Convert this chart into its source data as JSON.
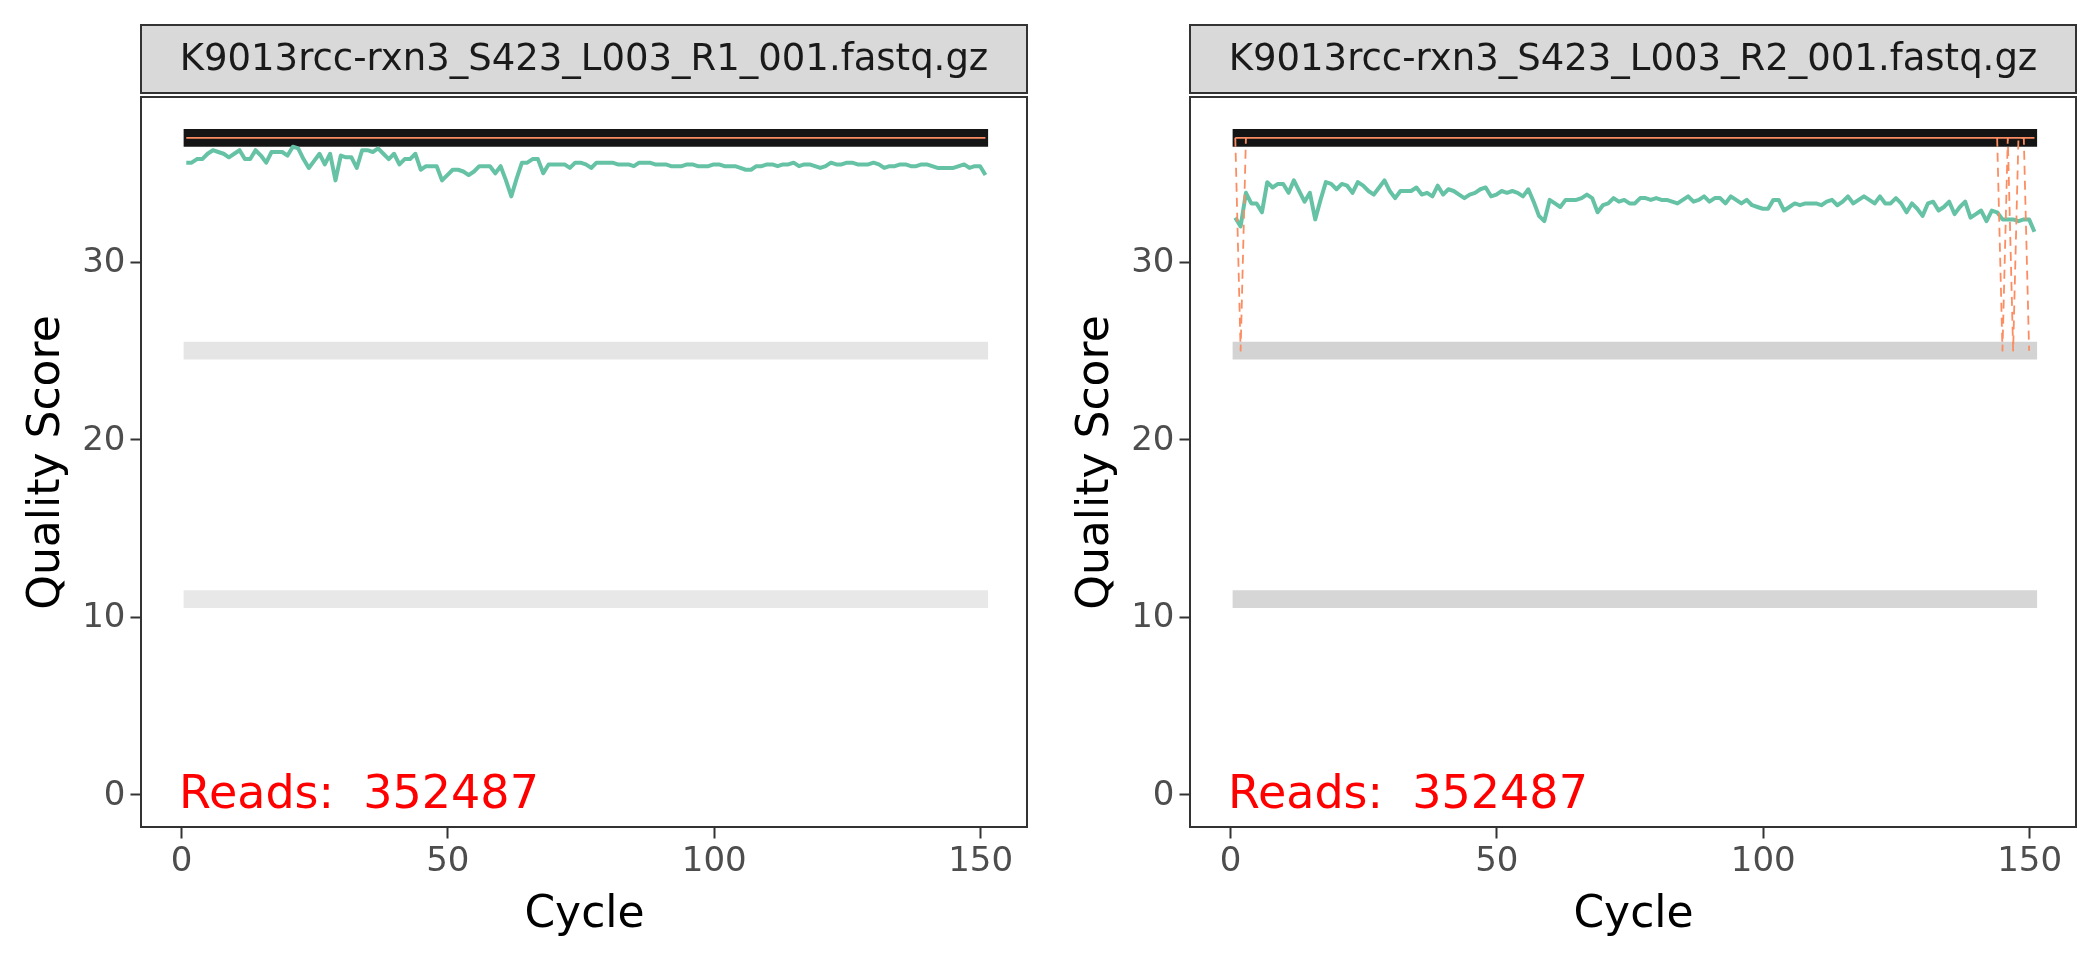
{
  "chart_data": [
    {
      "type": "line",
      "title": "K9013rcc-rxn3_S423_L003_R1_001.fastq.gz",
      "xlabel": "Cycle",
      "ylabel": "Quality Score",
      "xlim": [
        -7.5,
        158.8
      ],
      "xticks": [
        0,
        50,
        100,
        150
      ],
      "ylim": [
        -1.85,
        39.3
      ],
      "yticks": [
        0,
        10,
        20,
        30
      ],
      "annotations": [
        "Reads:  352487"
      ],
      "bands": [
        {
          "axis": "y",
          "from": 36.5,
          "to": 37.5,
          "color": "#151515"
        },
        {
          "axis": "y",
          "from": 24.5,
          "to": 25.5,
          "color": "#e5e5e5"
        },
        {
          "axis": "y",
          "from": 10.5,
          "to": 11.5,
          "color": "#e8e8e8"
        }
      ],
      "x": [
        1,
        2,
        3,
        4,
        5,
        6,
        7,
        8,
        9,
        10,
        11,
        12,
        13,
        14,
        15,
        16,
        17,
        18,
        19,
        20,
        21,
        22,
        23,
        24,
        25,
        26,
        27,
        28,
        29,
        30,
        31,
        32,
        33,
        34,
        35,
        36,
        37,
        38,
        39,
        40,
        41,
        42,
        43,
        44,
        45,
        46,
        47,
        48,
        49,
        50,
        51,
        52,
        53,
        54,
        55,
        56,
        57,
        58,
        59,
        60,
        61,
        62,
        63,
        64,
        65,
        66,
        67,
        68,
        69,
        70,
        71,
        72,
        73,
        74,
        75,
        76,
        77,
        78,
        79,
        80,
        81,
        82,
        83,
        84,
        85,
        86,
        87,
        88,
        89,
        90,
        91,
        92,
        93,
        94,
        95,
        96,
        97,
        98,
        99,
        100,
        101,
        102,
        103,
        104,
        105,
        106,
        107,
        108,
        109,
        110,
        111,
        112,
        113,
        114,
        115,
        116,
        117,
        118,
        119,
        120,
        121,
        122,
        123,
        124,
        125,
        126,
        127,
        128,
        129,
        130,
        131,
        132,
        133,
        134,
        135,
        136,
        137,
        138,
        139,
        140,
        141,
        142,
        143,
        144,
        145,
        146,
        147,
        148,
        149,
        150,
        151
      ],
      "series": [
        {
          "color": "#66c2a5",
          "values": [
            35.6,
            35.6,
            35.8,
            35.8,
            36.1,
            36.3,
            36.2,
            36.1,
            35.9,
            36.1,
            36.3,
            35.8,
            35.8,
            36.3,
            36.0,
            35.6,
            36.2,
            36.2,
            36.2,
            36.0,
            36.5,
            36.4,
            35.8,
            35.3,
            35.7,
            36.1,
            35.5,
            36.1,
            34.6,
            36.0,
            35.9,
            35.9,
            35.3,
            36.3,
            36.3,
            36.2,
            36.4,
            36.1,
            35.8,
            36.1,
            35.5,
            35.8,
            35.8,
            36.1,
            35.2,
            35.4,
            35.4,
            35.4,
            34.6,
            34.9,
            35.2,
            35.2,
            35.1,
            34.9,
            35.1,
            35.4,
            35.4,
            35.4,
            35.0,
            35.4,
            34.6,
            33.7,
            34.7,
            35.6,
            35.6,
            35.8,
            35.8,
            35.0,
            35.5,
            35.5,
            35.5,
            35.5,
            35.3,
            35.6,
            35.6,
            35.5,
            35.3,
            35.6,
            35.6,
            35.6,
            35.6,
            35.5,
            35.5,
            35.5,
            35.4,
            35.6,
            35.6,
            35.6,
            35.5,
            35.5,
            35.5,
            35.4,
            35.4,
            35.4,
            35.5,
            35.5,
            35.4,
            35.4,
            35.4,
            35.5,
            35.5,
            35.4,
            35.4,
            35.4,
            35.3,
            35.2,
            35.2,
            35.4,
            35.4,
            35.5,
            35.5,
            35.4,
            35.5,
            35.5,
            35.6,
            35.4,
            35.5,
            35.5,
            35.4,
            35.3,
            35.4,
            35.6,
            35.5,
            35.5,
            35.6,
            35.6,
            35.5,
            35.5,
            35.5,
            35.6,
            35.5,
            35.3,
            35.4,
            35.4,
            35.5,
            35.5,
            35.4,
            35.4,
            35.5,
            35.5,
            35.4,
            35.3,
            35.3,
            35.3,
            35.3,
            35.4,
            35.5,
            35.3,
            35.4,
            35.4,
            34.9
          ]
        },
        {
          "color": "#fc8d62",
          "line_style": "solid",
          "values": [
            37,
            37,
            37,
            37,
            37,
            37,
            37,
            37,
            37,
            37,
            37,
            37,
            37,
            37,
            37,
            37,
            37,
            37,
            37,
            37,
            37,
            37,
            37,
            37,
            37,
            37,
            37,
            37,
            37,
            37,
            37,
            37,
            37,
            37,
            37,
            37,
            37,
            37,
            37,
            37,
            37,
            37,
            37,
            37,
            37,
            37,
            37,
            37,
            37,
            37,
            37,
            37,
            37,
            37,
            37,
            37,
            37,
            37,
            37,
            37,
            37,
            37,
            37,
            37,
            37,
            37,
            37,
            37,
            37,
            37,
            37,
            37,
            37,
            37,
            37,
            37,
            37,
            37,
            37,
            37,
            37,
            37,
            37,
            37,
            37,
            37,
            37,
            37,
            37,
            37,
            37,
            37,
            37,
            37,
            37,
            37,
            37,
            37,
            37,
            37,
            37,
            37,
            37,
            37,
            37,
            37,
            37,
            37,
            37,
            37,
            37,
            37,
            37,
            37,
            37,
            37,
            37,
            37,
            37,
            37,
            37,
            37,
            37,
            37,
            37,
            37,
            37,
            37,
            37,
            37,
            37,
            37,
            37,
            37,
            37,
            37,
            37,
            37,
            37,
            37,
            37,
            37,
            37,
            37,
            37,
            37,
            37,
            37,
            37,
            37,
            37
          ]
        }
      ]
    },
    {
      "type": "line",
      "title": "K9013rcc-rxn3_S423_L003_R2_001.fastq.gz",
      "xlabel": "Cycle",
      "ylabel": "Quality Score",
      "xlim": [
        -7.5,
        158.8
      ],
      "xticks": [
        0,
        50,
        100,
        150
      ],
      "ylim": [
        -1.85,
        39.3
      ],
      "yticks": [
        0,
        10,
        20,
        30
      ],
      "annotations": [
        "Reads:  352487"
      ],
      "bands": [
        {
          "axis": "y",
          "from": 36.5,
          "to": 37.5,
          "color": "#141414"
        },
        {
          "axis": "y",
          "from": 24.5,
          "to": 25.5,
          "color": "#d3d3d3"
        },
        {
          "axis": "y",
          "from": 10.5,
          "to": 11.5,
          "color": "#d6d6d6"
        }
      ],
      "x": [
        1,
        2,
        3,
        4,
        5,
        6,
        7,
        8,
        9,
        10,
        11,
        12,
        13,
        14,
        15,
        16,
        17,
        18,
        19,
        20,
        21,
        22,
        23,
        24,
        25,
        26,
        27,
        28,
        29,
        30,
        31,
        32,
        33,
        34,
        35,
        36,
        37,
        38,
        39,
        40,
        41,
        42,
        43,
        44,
        45,
        46,
        47,
        48,
        49,
        50,
        51,
        52,
        53,
        54,
        55,
        56,
        57,
        58,
        59,
        60,
        61,
        62,
        63,
        64,
        65,
        66,
        67,
        68,
        69,
        70,
        71,
        72,
        73,
        74,
        75,
        76,
        77,
        78,
        79,
        80,
        81,
        82,
        83,
        84,
        85,
        86,
        87,
        88,
        89,
        90,
        91,
        92,
        93,
        94,
        95,
        96,
        97,
        98,
        99,
        100,
        101,
        102,
        103,
        104,
        105,
        106,
        107,
        108,
        109,
        110,
        111,
        112,
        113,
        114,
        115,
        116,
        117,
        118,
        119,
        120,
        121,
        122,
        123,
        124,
        125,
        126,
        127,
        128,
        129,
        130,
        131,
        132,
        133,
        134,
        135,
        136,
        137,
        138,
        139,
        140,
        141,
        142,
        143,
        144,
        145,
        146,
        147,
        148,
        149,
        150,
        151
      ],
      "series": [
        {
          "color": "#66c2a5",
          "values": [
            32.5,
            32.0,
            33.9,
            33.3,
            33.3,
            32.8,
            34.5,
            34.2,
            34.4,
            34.4,
            33.9,
            34.6,
            34.0,
            33.4,
            33.9,
            32.4,
            33.5,
            34.5,
            34.4,
            34.1,
            34.4,
            34.3,
            33.9,
            34.5,
            34.3,
            34.0,
            33.8,
            34.2,
            34.6,
            34.0,
            33.6,
            34.0,
            34.0,
            34.0,
            34.2,
            33.8,
            33.9,
            33.7,
            34.3,
            33.8,
            34.1,
            34.0,
            33.8,
            33.6,
            33.8,
            33.9,
            34.1,
            34.2,
            33.7,
            33.8,
            34.0,
            33.9,
            34.0,
            33.9,
            33.7,
            34.1,
            33.4,
            32.6,
            32.3,
            33.5,
            33.3,
            33.1,
            33.5,
            33.5,
            33.5,
            33.6,
            33.8,
            33.6,
            32.8,
            33.2,
            33.3,
            33.6,
            33.4,
            33.5,
            33.3,
            33.3,
            33.6,
            33.6,
            33.5,
            33.6,
            33.5,
            33.5,
            33.4,
            33.3,
            33.5,
            33.7,
            33.4,
            33.5,
            33.7,
            33.4,
            33.6,
            33.6,
            33.3,
            33.7,
            33.5,
            33.3,
            33.5,
            33.2,
            33.1,
            33.0,
            33.0,
            33.5,
            33.5,
            32.9,
            33.1,
            33.3,
            33.2,
            33.3,
            33.3,
            33.3,
            33.2,
            33.4,
            33.5,
            33.2,
            33.4,
            33.7,
            33.3,
            33.5,
            33.7,
            33.5,
            33.3,
            33.7,
            33.3,
            33.3,
            33.6,
            33.3,
            32.8,
            33.3,
            33.0,
            32.6,
            33.3,
            33.4,
            32.9,
            33.1,
            33.4,
            32.7,
            33.1,
            33.4,
            32.5,
            32.7,
            32.9,
            32.3,
            32.9,
            32.8,
            32.4,
            32.4,
            32.4,
            32.3,
            32.4,
            32.4,
            31.7
          ]
        },
        {
          "color": "#fc8d62",
          "line_style": "solid",
          "values": [
            37,
            37,
            37,
            37,
            37,
            37,
            37,
            37,
            37,
            37,
            37,
            37,
            37,
            37,
            37,
            37,
            37,
            37,
            37,
            37,
            37,
            37,
            37,
            37,
            37,
            37,
            37,
            37,
            37,
            37,
            37,
            37,
            37,
            37,
            37,
            37,
            37,
            37,
            37,
            37,
            37,
            37,
            37,
            37,
            37,
            37,
            37,
            37,
            37,
            37,
            37,
            37,
            37,
            37,
            37,
            37,
            37,
            37,
            37,
            37,
            37,
            37,
            37,
            37,
            37,
            37,
            37,
            37,
            37,
            37,
            37,
            37,
            37,
            37,
            37,
            37,
            37,
            37,
            37,
            37,
            37,
            37,
            37,
            37,
            37,
            37,
            37,
            37,
            37,
            37,
            37,
            37,
            37,
            37,
            37,
            37,
            37,
            37,
            37,
            37,
            37,
            37,
            37,
            37,
            37,
            37,
            37,
            37,
            37,
            37,
            37,
            37,
            37,
            37,
            37,
            37,
            37,
            37,
            37,
            37,
            37,
            37,
            37,
            37,
            37,
            37,
            37,
            37,
            37,
            37,
            37,
            37,
            37,
            37,
            37,
            37,
            37,
            37,
            37,
            37,
            37,
            37,
            37,
            37,
            37,
            37,
            37,
            37,
            37,
            37,
            37
          ]
        },
        {
          "color": "#fc8d62",
          "line_style": "dashed",
          "values": [
            37,
            25,
            37,
            null,
            null,
            null,
            null,
            null,
            null,
            null,
            null,
            null,
            null,
            null,
            null,
            null,
            null,
            null,
            null,
            null,
            null,
            null,
            null,
            null,
            null,
            null,
            null,
            null,
            null,
            null,
            null,
            null,
            null,
            null,
            null,
            null,
            null,
            null,
            null,
            null,
            null,
            null,
            null,
            null,
            null,
            null,
            null,
            null,
            null,
            null,
            null,
            null,
            null,
            null,
            null,
            null,
            null,
            null,
            null,
            null,
            null,
            null,
            null,
            null,
            null,
            null,
            null,
            null,
            null,
            null,
            null,
            null,
            null,
            null,
            null,
            null,
            null,
            null,
            null,
            null,
            null,
            null,
            null,
            null,
            null,
            null,
            null,
            null,
            null,
            null,
            null,
            null,
            null,
            null,
            null,
            null,
            null,
            null,
            null,
            null,
            null,
            null,
            null,
            null,
            null,
            null,
            null,
            null,
            null,
            null,
            null,
            null,
            null,
            null,
            null,
            null,
            null,
            null,
            null,
            null,
            null,
            null,
            null,
            null,
            null,
            null,
            null,
            null,
            null,
            null,
            null,
            null,
            null,
            null,
            null,
            null,
            null,
            null,
            null,
            null,
            null,
            null,
            null,
            37,
            25,
            37,
            25,
            37,
            37,
            25,
            null
          ]
        }
      ]
    }
  ]
}
